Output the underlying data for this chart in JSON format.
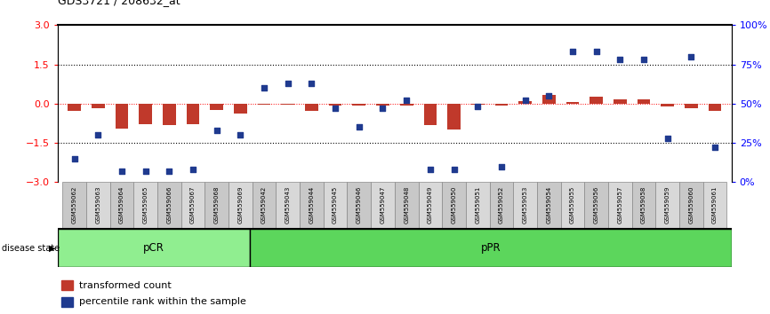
{
  "title": "GDS3721 / 208632_at",
  "samples": [
    "GSM559062",
    "GSM559063",
    "GSM559064",
    "GSM559065",
    "GSM559066",
    "GSM559067",
    "GSM559068",
    "GSM559069",
    "GSM559042",
    "GSM559043",
    "GSM559044",
    "GSM559045",
    "GSM559046",
    "GSM559047",
    "GSM559048",
    "GSM559049",
    "GSM559050",
    "GSM559051",
    "GSM559052",
    "GSM559053",
    "GSM559054",
    "GSM559055",
    "GSM559056",
    "GSM559057",
    "GSM559058",
    "GSM559059",
    "GSM559060",
    "GSM559061"
  ],
  "transformed_count": [
    -0.28,
    -0.18,
    -0.95,
    -0.78,
    -0.82,
    -0.78,
    -0.25,
    -0.38,
    -0.05,
    -0.04,
    -0.28,
    -0.08,
    -0.08,
    -0.08,
    -0.08,
    -0.82,
    -0.98,
    -0.04,
    -0.06,
    0.08,
    0.32,
    0.05,
    0.28,
    0.18,
    0.18,
    -0.12,
    -0.18,
    -0.28
  ],
  "percentile_rank": [
    15,
    30,
    7,
    7,
    7,
    8,
    33,
    30,
    60,
    63,
    63,
    47,
    35,
    47,
    52,
    8,
    8,
    48,
    10,
    52,
    55,
    83,
    83,
    78,
    78,
    28,
    80,
    22
  ],
  "pCR_count": 8,
  "ylim": [
    -3,
    3
  ],
  "yticks_left": [
    -3,
    -1.5,
    0,
    1.5,
    3
  ],
  "yticks_right_pct": [
    0,
    25,
    50,
    75,
    100
  ],
  "bar_color": "#c0392b",
  "dot_color": "#1f3a8f",
  "pcr_color": "#90EE90",
  "ppr_color": "#5CD65C",
  "label_bg_even": "#c8c8c8",
  "label_bg_odd": "#d8d8d8",
  "legend_bar": "transformed count",
  "legend_dot": "percentile rank within the sample"
}
